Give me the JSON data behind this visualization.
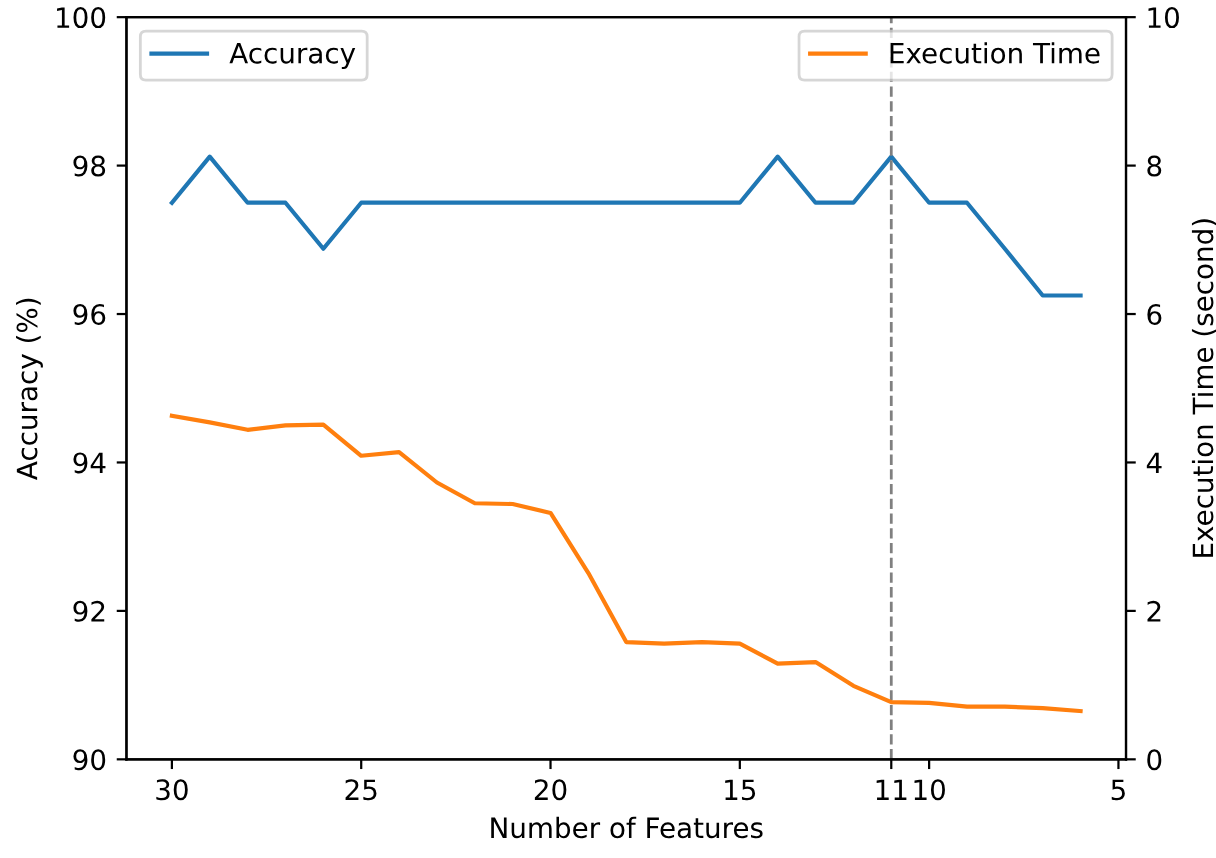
{
  "chart_data": {
    "type": "line",
    "xlabel": "Number of Features",
    "ylabel": "Accuracy (%)",
    "y2label": "Execution Time (second)",
    "x": [
      30,
      29,
      28,
      27,
      26,
      25,
      24,
      23,
      22,
      21,
      20,
      19,
      18,
      17,
      16,
      15,
      14,
      13,
      12,
      11,
      10,
      9,
      8,
      7,
      6
    ],
    "series": [
      {
        "name": "Accuracy",
        "color": "#1f77b4",
        "values": [
          97.5,
          98.12,
          97.5,
          97.5,
          96.88,
          97.5,
          97.5,
          97.5,
          97.5,
          97.5,
          97.5,
          97.5,
          97.5,
          97.5,
          97.5,
          97.5,
          98.12,
          97.5,
          97.5,
          98.12,
          97.5,
          97.5,
          96.88,
          96.25,
          96.25
        ]
      },
      {
        "name": "Execution Time",
        "color": "#ff7f0e",
        "axis": "y2",
        "values": [
          4.63,
          4.54,
          4.44,
          4.5,
          4.51,
          4.09,
          4.14,
          3.73,
          3.45,
          3.44,
          3.32,
          2.51,
          1.58,
          1.56,
          1.58,
          1.56,
          1.29,
          1.31,
          0.99,
          0.77,
          0.76,
          0.71,
          0.71,
          0.69,
          0.65
        ]
      }
    ],
    "xlim": [
      31.2,
      4.8
    ],
    "xticks": [
      30,
      25,
      20,
      15,
      11,
      10,
      5
    ],
    "ylim": [
      90,
      100
    ],
    "yticks": [
      90,
      92,
      94,
      96,
      98,
      100
    ],
    "y2lim": [
      0,
      10
    ],
    "y2ticks": [
      0,
      2,
      4,
      6,
      8,
      10
    ],
    "ref_lines": [
      {
        "axis": "x",
        "value": 11,
        "color": "#808080",
        "line_style": "dashed"
      }
    ],
    "legend": "top",
    "grid": false,
    "marker": "none",
    "line_style": "solid"
  }
}
